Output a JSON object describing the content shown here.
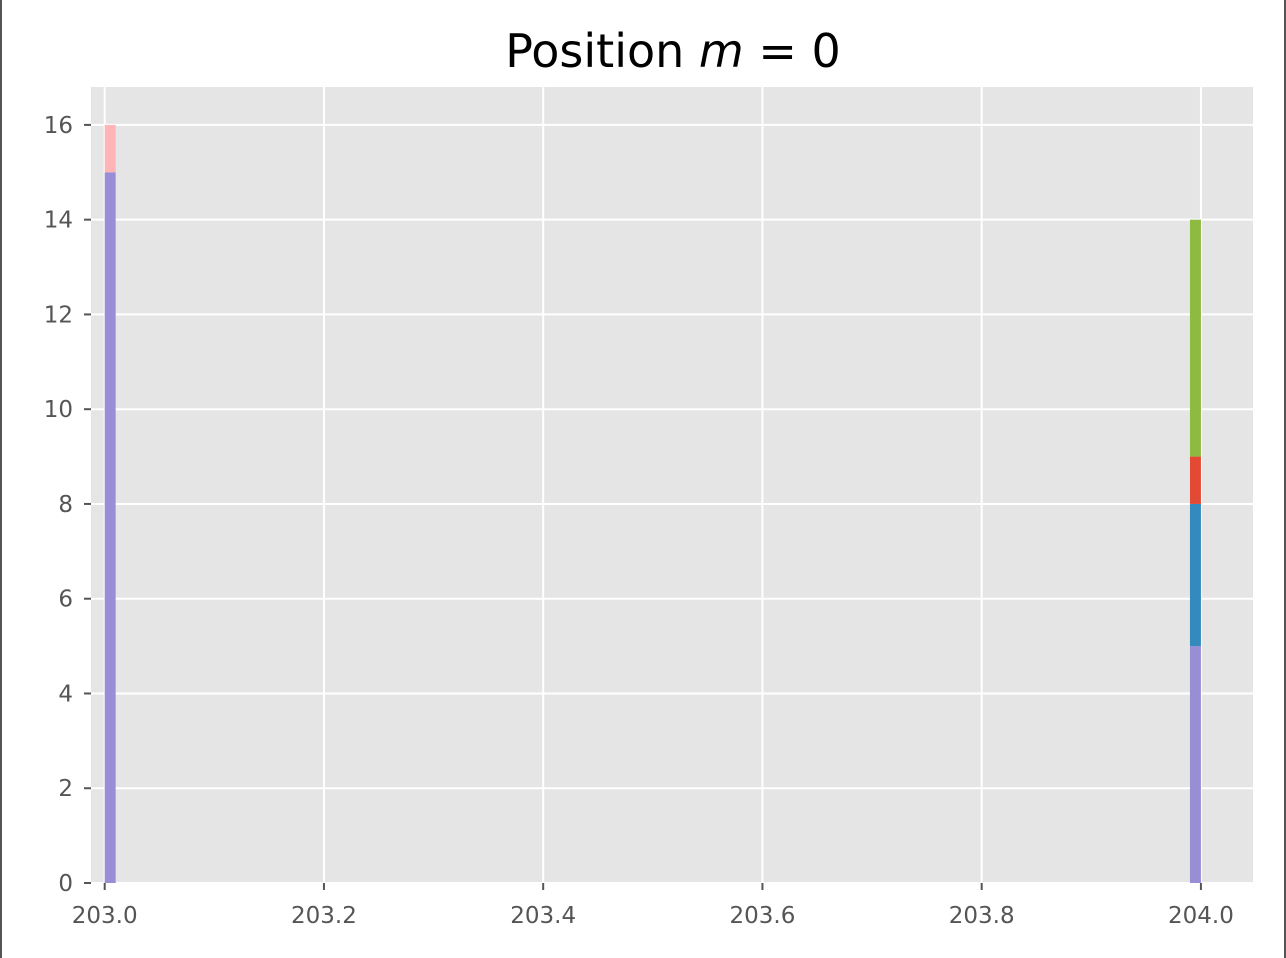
{
  "chart_data": {
    "type": "bar",
    "style": "stacked-histogram",
    "title_text": "Position ",
    "title_math_var": "m",
    "title_math_rest": " = 0",
    "xlim": [
      202.9875,
      204.0475
    ],
    "ylim": [
      0,
      16.8
    ],
    "x_ticks": [
      203.0,
      203.2,
      203.4,
      203.6,
      203.8,
      204.0
    ],
    "x_tick_labels": [
      "203.0",
      "203.2",
      "203.4",
      "203.6",
      "203.8",
      "204.0"
    ],
    "y_ticks": [
      0,
      2,
      4,
      6,
      8,
      10,
      12,
      14,
      16
    ],
    "y_tick_labels": [
      "0",
      "2",
      "4",
      "6",
      "8",
      "10",
      "12",
      "14",
      "16"
    ],
    "grid": true,
    "bin_width": 0.01,
    "bins": [
      {
        "x": 203.0,
        "segments": [
          {
            "from": 0,
            "to": 15,
            "color": "#988ED5"
          },
          {
            "from": 15,
            "to": 16,
            "color": "#FFB5B8"
          }
        ]
      },
      {
        "x": 203.99,
        "segments": [
          {
            "from": 0,
            "to": 5,
            "color": "#988ED5"
          },
          {
            "from": 5,
            "to": 8,
            "color": "#348ABD"
          },
          {
            "from": 8,
            "to": 9,
            "color": "#E24A33"
          },
          {
            "from": 9,
            "to": 14,
            "color": "#8EBA42"
          }
        ]
      }
    ],
    "colors": {
      "plot_background": "#E5E5E5",
      "grid": "#FFFFFF",
      "tick": "#555555"
    }
  }
}
